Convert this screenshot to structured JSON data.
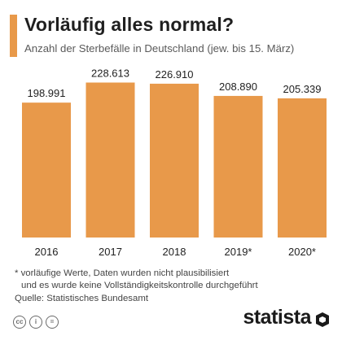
{
  "header": {
    "title": "Vorläufig alles normal?",
    "subtitle": "Anzahl der Sterbefälle in Deutschland (jew. bis 15. März)"
  },
  "chart_data": {
    "type": "bar",
    "categories": [
      "2016",
      "2017",
      "2018",
      "2019*",
      "2020*"
    ],
    "values": [
      198991,
      228613,
      226910,
      208890,
      205339
    ],
    "value_labels": [
      "198.991",
      "228.613",
      "226.910",
      "208.890",
      "205.339"
    ],
    "ylim": [
      0,
      240000
    ],
    "bar_color": "#e8994a",
    "grid": false,
    "legend": "none"
  },
  "footer": {
    "note_line1": "* vorläufige Werte, Daten wurden nicht plausibilisiert",
    "note_line2": "und es wurde keine Vollständigkeitskontrolle durchgeführt",
    "source": "Quelle: Statistisches Bundesamt",
    "license_icons": [
      "creative-commons-icon",
      "attribution-icon",
      "equals-icon"
    ],
    "license_glyphs": [
      "cc",
      "i",
      "="
    ],
    "brand": "statista"
  }
}
